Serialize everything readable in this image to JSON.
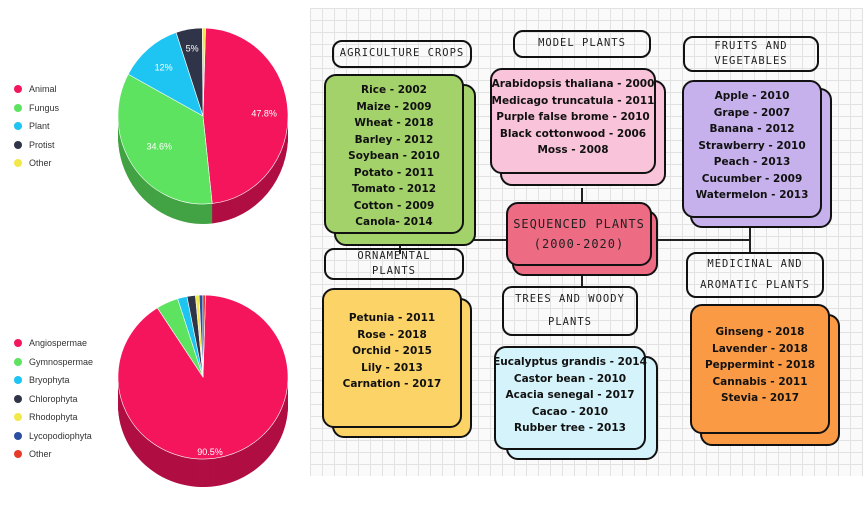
{
  "chart_data": [
    {
      "type": "pie",
      "slices": [
        {
          "name": "Animal",
          "value": 47.8,
          "label": "47.8%",
          "color": "#f5155d"
        },
        {
          "name": "Fungus",
          "value": 34.6,
          "label": "34.6%",
          "color": "#5de35f"
        },
        {
          "name": "Plant",
          "value": 12,
          "label": "12%",
          "color": "#1ec5f2"
        },
        {
          "name": "Protist",
          "value": 5,
          "label": "5%",
          "color": "#2f3448"
        },
        {
          "name": "Other",
          "value": 0.6,
          "label": "",
          "color": "#f2e84a"
        }
      ]
    },
    {
      "type": "pie",
      "slices": [
        {
          "name": "Angiospermae",
          "value": 90.5,
          "label": "90.5%",
          "color": "#f5155d"
        },
        {
          "name": "Gymnospermae",
          "value": 4.2,
          "label": "",
          "color": "#5de35f"
        },
        {
          "name": "Bryophyta",
          "value": 1.8,
          "label": "",
          "color": "#1ec5f2"
        },
        {
          "name": "Chlorophyta",
          "value": 1.6,
          "label": "",
          "color": "#2f3448"
        },
        {
          "name": "Rhodophyta",
          "value": 0.7,
          "label": "",
          "color": "#f2e84a"
        },
        {
          "name": "Lycopodiophyta",
          "value": 0.7,
          "label": "",
          "color": "#2a4fa0"
        },
        {
          "name": "Other",
          "value": 0.5,
          "label": "",
          "color": "#e83a2a"
        }
      ]
    }
  ],
  "diagram": {
    "center": {
      "line1": "SEQUENCED PLANTS",
      "line2": "(2000-2020)",
      "color": "#ee6b84"
    },
    "groups": {
      "agriculture": {
        "title": "AGRICULTURE CROPS",
        "color": "#a3d16a",
        "items": [
          "Rice - 2002",
          "Maize - 2009",
          "Wheat - 2018",
          "Barley  - 2012",
          "Soybean  - 2010",
          "Potato  - 2011",
          "Tomato - 2012",
          "Cotton - 2009",
          "Canola- 2014"
        ]
      },
      "model": {
        "title": "MODEL PLANTS",
        "color": "#f9c3d9",
        "items": [
          "Arabidopsis thaliana - 2000",
          "Medicago truncatula  - 2011",
          "Purple false brome  - 2010",
          "Black cottonwood - 2006",
          "Moss - 2008"
        ]
      },
      "fruits": {
        "title_line1": "FRUITS AND",
        "title_line2": "VEGETABLES",
        "color": "#c6b1ec",
        "items": [
          "Apple  - 2010",
          "Grape - 2007",
          "Banana  - 2012",
          "Strawberry  - 2010",
          "Peach  - 2013",
          "Cucumber  - 2009",
          "Watermelon - 2013"
        ]
      },
      "ornamental": {
        "title_line1": "ORNAMENTAL",
        "title_line2": "PLANTS",
        "color": "#fcd367",
        "items": [
          "Petunia - 2011",
          "Rose - 2018",
          "Orchid - 2015",
          "Lily  - 2013",
          "Carnation - 2017"
        ]
      },
      "trees": {
        "title_line1": "TREES AND WOODY",
        "title_line2": "PLANTS",
        "color": "#d4f3fa",
        "items": [
          "Eucalyptus grandis - 2014",
          "Castor bean - 2010",
          "Acacia senegal - 2017",
          "Cacao - 2010",
          "Rubber tree - 2013"
        ]
      },
      "medicinal": {
        "title_line1": "MEDICINAL AND",
        "title_line2": "AROMATIC PLANTS",
        "color": "#fb9a45",
        "items": [
          "Ginseng  - 2018",
          "Lavender - 2018",
          "Peppermint - 2018",
          "Cannabis - 2011",
          "Stevia  - 2017"
        ]
      }
    }
  }
}
